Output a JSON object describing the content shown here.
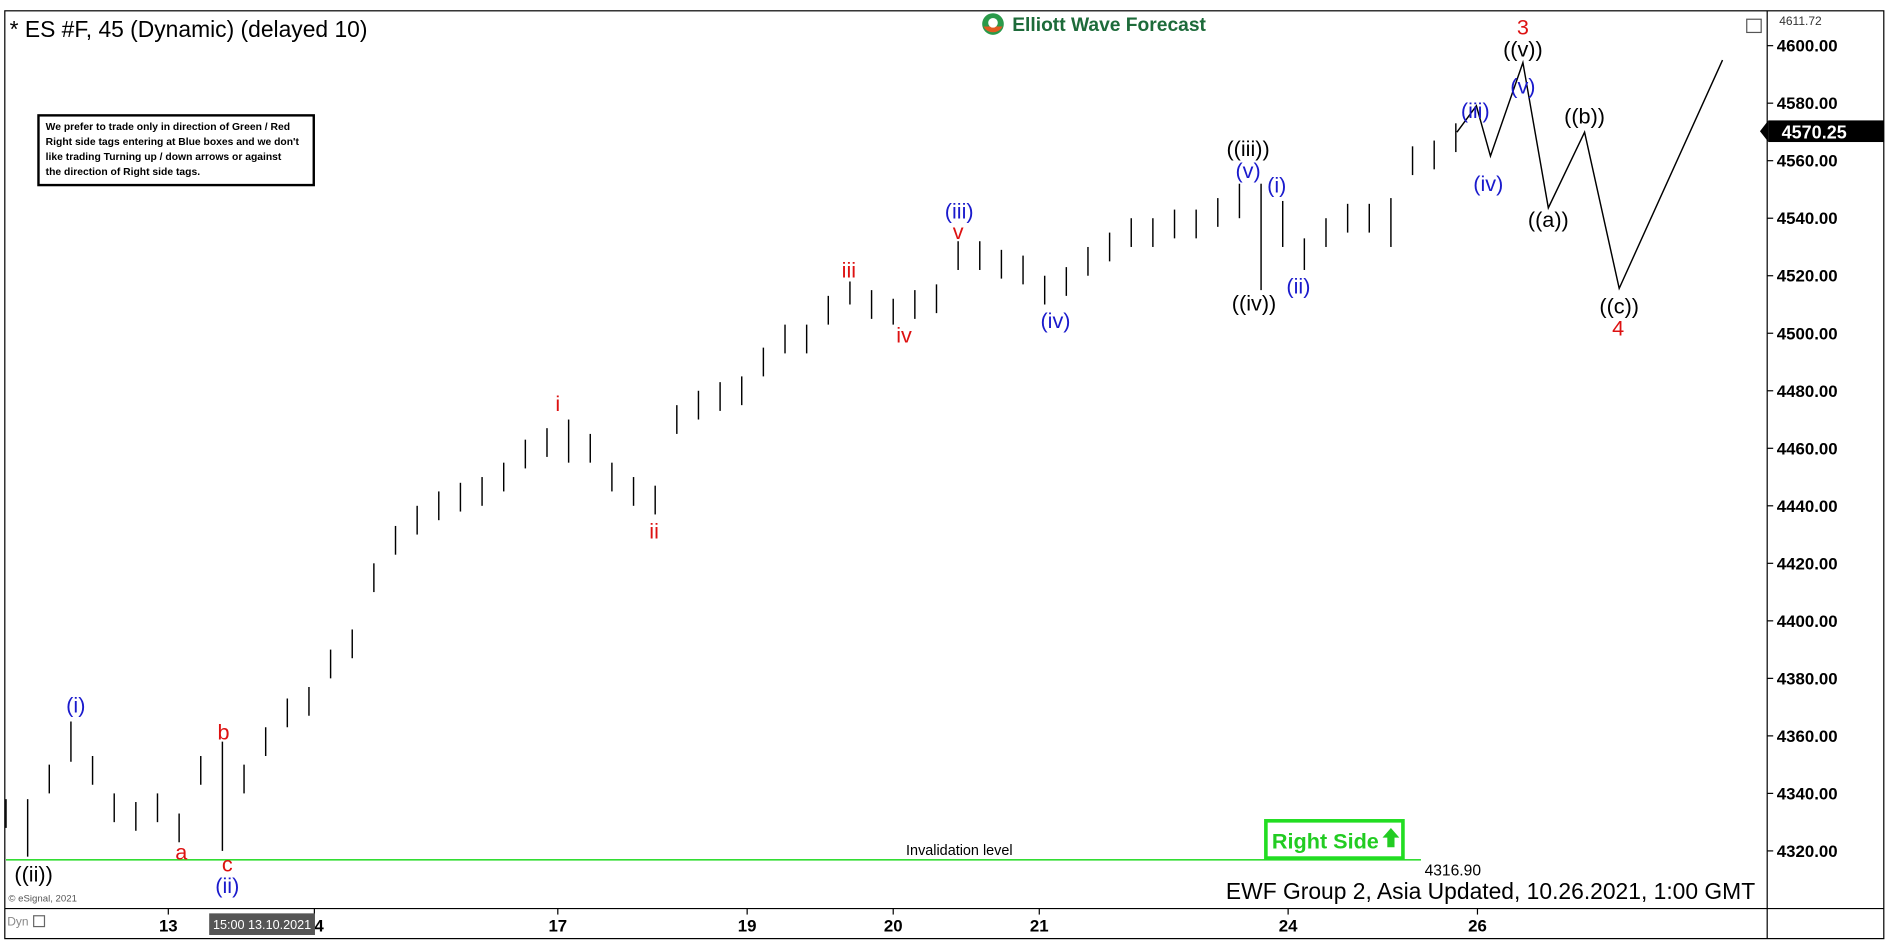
{
  "chart_data": {
    "type": "hl",
    "title": "* ES #F, 45 (Dynamic) (delayed 10)",
    "brand": "Elliott Wave Forecast",
    "note": [
      "We prefer to trade only in direction of Green / Red",
      "Right side tags entering at Blue boxes and we don't",
      "like trading Turning up / down arrows or against",
      "the direction of Right side tags."
    ],
    "footer": "EWF Group 2, Asia Updated, 10.26.2021, 1:00 GMT",
    "copyright": "© eSignal, 2021",
    "mode": "Dyn",
    "cursor_label": "15:00 13.10.2021",
    "badge": "Right Side",
    "color": "#000000",
    "xlim": [
      0,
      325
    ],
    "xticks": [
      {
        "value": 30,
        "label": "13"
      },
      {
        "value": 57,
        "label": "14"
      },
      {
        "value": 102,
        "label": "17"
      },
      {
        "value": 137,
        "label": "19"
      },
      {
        "value": 164,
        "label": "20"
      },
      {
        "value": 191,
        "label": "21"
      },
      {
        "value": 237,
        "label": "24"
      },
      {
        "value": 272,
        "label": "26"
      }
    ],
    "ylim": [
      4300,
      4611.72
    ],
    "yticks": [
      {
        "value": 4320,
        "label": "4320.00"
      },
      {
        "value": 4340,
        "label": "4340.00"
      },
      {
        "value": 4360,
        "label": "4360.00"
      },
      {
        "value": 4380,
        "label": "4380.00"
      },
      {
        "value": 4400,
        "label": "4400.00"
      },
      {
        "value": 4420,
        "label": "4420.00"
      },
      {
        "value": 4440,
        "label": "4440.00"
      },
      {
        "value": 4460,
        "label": "4460.00"
      },
      {
        "value": 4480,
        "label": "4480.00"
      },
      {
        "value": 4500,
        "label": "4500.00"
      },
      {
        "value": 4520,
        "label": "4520.00"
      },
      {
        "value": 4540,
        "label": "4540.00"
      },
      {
        "value": 4560,
        "label": "4560.00"
      },
      {
        "value": 4580,
        "label": "4580.00"
      },
      {
        "value": 4600,
        "label": "4600.00"
      }
    ],
    "x": [
      0,
      4,
      8,
      12,
      16,
      20,
      24,
      28,
      32,
      36,
      40,
      44,
      48,
      52,
      56,
      60,
      64,
      68,
      72,
      76,
      80,
      84,
      88,
      92,
      96,
      100,
      104,
      108,
      112,
      116,
      120,
      124,
      128,
      132,
      136,
      140,
      144,
      148,
      152,
      156,
      160,
      164,
      168,
      172,
      176,
      180,
      184,
      188,
      192,
      196,
      200,
      204,
      208,
      212,
      216,
      220,
      224,
      228,
      232,
      236,
      240,
      244,
      248,
      252,
      256,
      260,
      264,
      268
    ],
    "high": [
      4338,
      4338,
      4350,
      4365,
      4353,
      4340,
      4337,
      4340,
      4333,
      4353,
      4358,
      4350,
      4363,
      4373,
      4377,
      4390,
      4397,
      4420,
      4433,
      4440,
      4445,
      4448,
      4450,
      4455,
      4463,
      4467,
      4470,
      4465,
      4455,
      4450,
      4447,
      4475,
      4480,
      4483,
      4485,
      4495,
      4503,
      4503,
      4513,
      4518,
      4515,
      4512,
      4515,
      4517,
      4532,
      4532,
      4529,
      4527,
      4520,
      4523,
      4530,
      4535,
      4540,
      4540,
      4543,
      4543,
      4547,
      4552,
      4552,
      4546,
      4533,
      4540,
      4545,
      4545,
      4547,
      4565,
      4567,
      4573
    ],
    "low": [
      4328,
      4318,
      4340,
      4351,
      4343,
      4330,
      4327,
      4330,
      4323,
      4343,
      4320,
      4340,
      4353,
      4363,
      4367,
      4380,
      4387,
      4410,
      4423,
      4430,
      4435,
      4438,
      4440,
      4445,
      4453,
      4457,
      4455,
      4455,
      4445,
      4440,
      4437,
      4465,
      4470,
      4473,
      4475,
      4485,
      4493,
      4493,
      4503,
      4510,
      4505,
      4503,
      4505,
      4507,
      4522,
      4522,
      4519,
      4517,
      4510,
      4513,
      4520,
      4525,
      4530,
      4530,
      4533,
      4533,
      4537,
      4540,
      4515,
      4530,
      4522,
      4530,
      4535,
      4535,
      4530,
      4555,
      4557,
      4563
    ],
    "projection": {
      "color": "#000000",
      "x": [
        268.2,
        271.8,
        274.4,
        280.4,
        285.1,
        291.8,
        298.2,
        317.3
      ],
      "values": [
        4569.9,
        4579.1,
        4561.6,
        4594.1,
        4543.6,
        4569.9,
        4515.6,
        4595.0
      ]
    },
    "invalidation": {
      "value": 4316.9,
      "value_label": "4316.90",
      "text": "Invalidation level",
      "color": "#33dd33"
    },
    "last_price": 4570.25,
    "annotations": [
      {
        "text": "((ii))",
        "x": 5.1,
        "y": 4311.9,
        "color": "#000000"
      },
      {
        "text": "(i)",
        "x": 12.9,
        "y": 4370.6,
        "color": "#1a1acc"
      },
      {
        "text": "a",
        "x": 32.4,
        "y": 4319.5,
        "color": "#dd1111"
      },
      {
        "text": "b",
        "x": 40.2,
        "y": 4361.3,
        "color": "#dd1111"
      },
      {
        "text": "c",
        "x": 40.9,
        "y": 4315.3,
        "color": "#dd1111"
      },
      {
        "text": "(ii)",
        "x": 40.9,
        "y": 4307.8,
        "color": "#1a1acc"
      },
      {
        "text": "i",
        "x": 102,
        "y": 4475.4,
        "color": "#dd1111"
      },
      {
        "text": "ii",
        "x": 119.8,
        "y": 4431.2,
        "color": "#dd1111"
      },
      {
        "text": "iii",
        "x": 155.8,
        "y": 4521.9,
        "color": "#dd1111"
      },
      {
        "text": "iv",
        "x": 166,
        "y": 4499.3,
        "color": "#dd1111"
      },
      {
        "text": "v",
        "x": 176,
        "y": 4535.3,
        "color": "#dd1111"
      },
      {
        "text": "(iii)",
        "x": 176.2,
        "y": 4542.4,
        "color": "#1a1acc"
      },
      {
        "text": "(iv)",
        "x": 194,
        "y": 4504.4,
        "color": "#1a1acc"
      },
      {
        "text": "((iii))",
        "x": 229.6,
        "y": 4564.1,
        "color": "#000000"
      },
      {
        "text": "(v)",
        "x": 229.6,
        "y": 4556.5,
        "color": "#1a1acc"
      },
      {
        "text": "((iv))",
        "x": 230.7,
        "y": 4510.4,
        "color": "#000000"
      },
      {
        "text": "(i)",
        "x": 234.9,
        "y": 4551.5,
        "color": "#1a1acc"
      },
      {
        "text": "(ii)",
        "x": 238.9,
        "y": 4516.4,
        "color": "#1a1acc"
      },
      {
        "text": "(iii)",
        "x": 271.6,
        "y": 4577.4,
        "color": "#1a1acc"
      },
      {
        "text": "(iv)",
        "x": 274,
        "y": 4551.9,
        "color": "#1a1acc"
      },
      {
        "text": "(v)",
        "x": 280.4,
        "y": 4585.9,
        "color": "#1a1acc"
      },
      {
        "text": "((v))",
        "x": 280.4,
        "y": 4598.7,
        "color": "#000000"
      },
      {
        "text": "3",
        "x": 280.4,
        "y": 4606.3,
        "color": "#dd1111"
      },
      {
        "text": "((a))",
        "x": 285.1,
        "y": 4539.4,
        "color": "#000000"
      },
      {
        "text": "((b))",
        "x": 291.8,
        "y": 4575.4,
        "color": "#000000"
      },
      {
        "text": "((c))",
        "x": 298.2,
        "y": 4509.3,
        "color": "#000000"
      },
      {
        "text": "4",
        "x": 298,
        "y": 4501.8,
        "color": "#dd1111"
      }
    ]
  }
}
